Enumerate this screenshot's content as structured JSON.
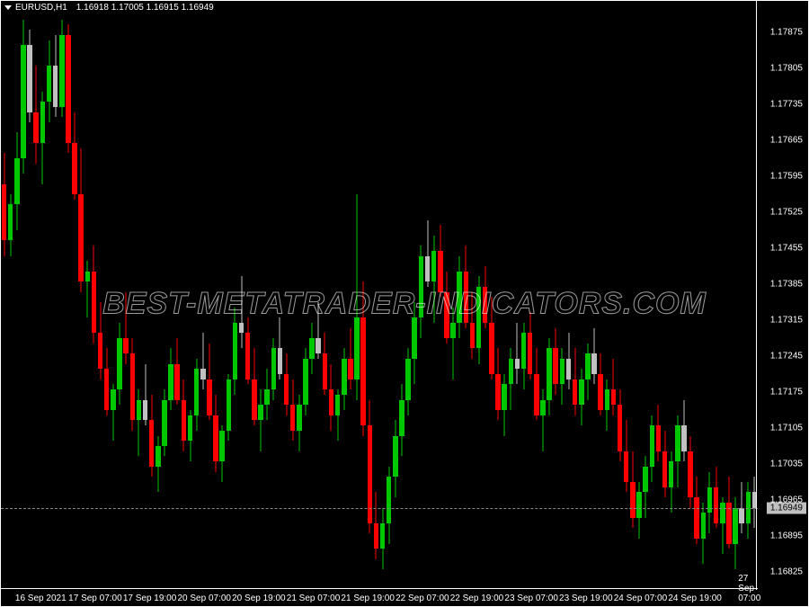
{
  "header": {
    "symbol": "EURUSD,H1",
    "ohlc": "1.16918 1.17005 1.16915 1.16949"
  },
  "chart": {
    "type": "candlestick",
    "background_color": "#000000",
    "border_color": "#ffffff",
    "text_color": "#ffffff",
    "up_color": "#00c800",
    "down_color": "#ff0000",
    "neutral_color": "#c0c0c0",
    "candle_width": 5.5,
    "ylim": [
      1.1679,
      1.1791
    ],
    "price_line_color": "#888888",
    "current_price": "1.16949",
    "y_ticks": [
      {
        "value": 1.17875,
        "label": "1.17875"
      },
      {
        "value": 1.17805,
        "label": "1.17805"
      },
      {
        "value": 1.17735,
        "label": "1.17735"
      },
      {
        "value": 1.17665,
        "label": "1.17665"
      },
      {
        "value": 1.17595,
        "label": "1.17595"
      },
      {
        "value": 1.17525,
        "label": "1.17525"
      },
      {
        "value": 1.17455,
        "label": "1.17455"
      },
      {
        "value": 1.17385,
        "label": "1.17385"
      },
      {
        "value": 1.17315,
        "label": "1.17315"
      },
      {
        "value": 1.17245,
        "label": "1.17245"
      },
      {
        "value": 1.17175,
        "label": "1.17175"
      },
      {
        "value": 1.17105,
        "label": "1.17105"
      },
      {
        "value": 1.17035,
        "label": "1.17035"
      },
      {
        "value": 1.16965,
        "label": "1.16965"
      },
      {
        "value": 1.16895,
        "label": "1.16895"
      },
      {
        "value": 1.16825,
        "label": "1.16825"
      }
    ],
    "x_ticks": [
      {
        "pos": 0.02,
        "label": "16 Sep 2021"
      },
      {
        "pos": 0.105,
        "label": "17 Sep 07:00"
      },
      {
        "pos": 0.19,
        "label": "17 Sep 19:00"
      },
      {
        "pos": 0.275,
        "label": "20 Sep 07:00"
      },
      {
        "pos": 0.36,
        "label": "20 Sep 19:00"
      },
      {
        "pos": 0.445,
        "label": "21 Sep 07:00"
      },
      {
        "pos": 0.53,
        "label": "21 Sep 19:00"
      },
      {
        "pos": 0.615,
        "label": "22 Sep 07:00"
      },
      {
        "pos": 0.7,
        "label": "22 Sep 19:00"
      },
      {
        "pos": 0.785,
        "label": "23 Sep 07:00"
      },
      {
        "pos": 0.87,
        "label": "23 Sep 19:00"
      },
      {
        "pos": 0.955,
        "label": "24 Sep 07:00"
      },
      {
        "pos": 1.04,
        "label": "24 Sep 19:00"
      },
      {
        "pos": 1.125,
        "label": "27 Sep 07:00"
      }
    ],
    "candles": [
      {
        "o": 1.1758,
        "h": 1.1764,
        "l": 1.1744,
        "c": 1.1747,
        "t": "down"
      },
      {
        "o": 1.1747,
        "h": 1.1756,
        "l": 1.1744,
        "c": 1.1754,
        "t": "up"
      },
      {
        "o": 1.1754,
        "h": 1.1768,
        "l": 1.1749,
        "c": 1.1763,
        "t": "up"
      },
      {
        "o": 1.1763,
        "h": 1.179,
        "l": 1.176,
        "c": 1.1785,
        "t": "up"
      },
      {
        "o": 1.1785,
        "h": 1.1788,
        "l": 1.177,
        "c": 1.1772,
        "t": "neutral"
      },
      {
        "o": 1.1772,
        "h": 1.1781,
        "l": 1.1762,
        "c": 1.1766,
        "t": "down"
      },
      {
        "o": 1.1766,
        "h": 1.1776,
        "l": 1.1758,
        "c": 1.1774,
        "t": "up"
      },
      {
        "o": 1.1774,
        "h": 1.1786,
        "l": 1.177,
        "c": 1.1781,
        "t": "up"
      },
      {
        "o": 1.1781,
        "h": 1.1787,
        "l": 1.1771,
        "c": 1.1773,
        "t": "neutral"
      },
      {
        "o": 1.1773,
        "h": 1.179,
        "l": 1.1771,
        "c": 1.1787,
        "t": "up"
      },
      {
        "o": 1.1787,
        "h": 1.1789,
        "l": 1.1764,
        "c": 1.1766,
        "t": "down"
      },
      {
        "o": 1.1766,
        "h": 1.1772,
        "l": 1.1755,
        "c": 1.1756,
        "t": "down"
      },
      {
        "o": 1.1756,
        "h": 1.1765,
        "l": 1.1737,
        "c": 1.1739,
        "t": "down"
      },
      {
        "o": 1.1739,
        "h": 1.1743,
        "l": 1.1732,
        "c": 1.1741,
        "t": "up"
      },
      {
        "o": 1.1741,
        "h": 1.1746,
        "l": 1.1727,
        "c": 1.1729,
        "t": "down"
      },
      {
        "o": 1.1729,
        "h": 1.1735,
        "l": 1.172,
        "c": 1.1722,
        "t": "down"
      },
      {
        "o": 1.1722,
        "h": 1.1726,
        "l": 1.1713,
        "c": 1.1714,
        "t": "down"
      },
      {
        "o": 1.1714,
        "h": 1.1719,
        "l": 1.1708,
        "c": 1.1718,
        "t": "up"
      },
      {
        "o": 1.1718,
        "h": 1.1731,
        "l": 1.1715,
        "c": 1.1728,
        "t": "up"
      },
      {
        "o": 1.1728,
        "h": 1.1737,
        "l": 1.1723,
        "c": 1.1725,
        "t": "down"
      },
      {
        "o": 1.1725,
        "h": 1.1728,
        "l": 1.171,
        "c": 1.1712,
        "t": "down"
      },
      {
        "o": 1.1712,
        "h": 1.1718,
        "l": 1.1705,
        "c": 1.1716,
        "t": "up"
      },
      {
        "o": 1.1716,
        "h": 1.1723,
        "l": 1.1711,
        "c": 1.1712,
        "t": "neutral"
      },
      {
        "o": 1.1712,
        "h": 1.1717,
        "l": 1.1701,
        "c": 1.1703,
        "t": "down"
      },
      {
        "o": 1.1703,
        "h": 1.1709,
        "l": 1.1698,
        "c": 1.1707,
        "t": "up"
      },
      {
        "o": 1.1707,
        "h": 1.1718,
        "l": 1.1705,
        "c": 1.1716,
        "t": "up"
      },
      {
        "o": 1.1716,
        "h": 1.1726,
        "l": 1.1714,
        "c": 1.1723,
        "t": "up"
      },
      {
        "o": 1.1723,
        "h": 1.1728,
        "l": 1.1715,
        "c": 1.1716,
        "t": "down"
      },
      {
        "o": 1.1716,
        "h": 1.172,
        "l": 1.1706,
        "c": 1.1708,
        "t": "down"
      },
      {
        "o": 1.1708,
        "h": 1.1714,
        "l": 1.1704,
        "c": 1.1713,
        "t": "up"
      },
      {
        "o": 1.1713,
        "h": 1.1724,
        "l": 1.171,
        "c": 1.1722,
        "t": "up"
      },
      {
        "o": 1.1722,
        "h": 1.1729,
        "l": 1.1718,
        "c": 1.172,
        "t": "neutral"
      },
      {
        "o": 1.172,
        "h": 1.1727,
        "l": 1.1712,
        "c": 1.1713,
        "t": "down"
      },
      {
        "o": 1.1713,
        "h": 1.1717,
        "l": 1.1702,
        "c": 1.1704,
        "t": "down"
      },
      {
        "o": 1.1704,
        "h": 1.1711,
        "l": 1.17,
        "c": 1.171,
        "t": "up"
      },
      {
        "o": 1.171,
        "h": 1.1721,
        "l": 1.1708,
        "c": 1.172,
        "t": "up"
      },
      {
        "o": 1.172,
        "h": 1.1734,
        "l": 1.1717,
        "c": 1.1731,
        "t": "up"
      },
      {
        "o": 1.1731,
        "h": 1.174,
        "l": 1.1726,
        "c": 1.1729,
        "t": "neutral"
      },
      {
        "o": 1.1729,
        "h": 1.1732,
        "l": 1.1719,
        "c": 1.172,
        "t": "down"
      },
      {
        "o": 1.172,
        "h": 1.1726,
        "l": 1.1711,
        "c": 1.1712,
        "t": "down"
      },
      {
        "o": 1.1712,
        "h": 1.1718,
        "l": 1.1706,
        "c": 1.1715,
        "t": "up"
      },
      {
        "o": 1.1715,
        "h": 1.1722,
        "l": 1.1712,
        "c": 1.1718,
        "t": "up"
      },
      {
        "o": 1.1718,
        "h": 1.1728,
        "l": 1.1716,
        "c": 1.1726,
        "t": "up"
      },
      {
        "o": 1.1726,
        "h": 1.1732,
        "l": 1.172,
        "c": 1.1721,
        "t": "neutral"
      },
      {
        "o": 1.1721,
        "h": 1.1725,
        "l": 1.1713,
        "c": 1.1715,
        "t": "down"
      },
      {
        "o": 1.1715,
        "h": 1.172,
        "l": 1.1708,
        "c": 1.171,
        "t": "down"
      },
      {
        "o": 1.171,
        "h": 1.1717,
        "l": 1.1706,
        "c": 1.1715,
        "t": "up"
      },
      {
        "o": 1.1715,
        "h": 1.1726,
        "l": 1.1713,
        "c": 1.1724,
        "t": "up"
      },
      {
        "o": 1.1724,
        "h": 1.1731,
        "l": 1.1721,
        "c": 1.1728,
        "t": "up"
      },
      {
        "o": 1.1728,
        "h": 1.1735,
        "l": 1.1724,
        "c": 1.1725,
        "t": "neutral"
      },
      {
        "o": 1.1725,
        "h": 1.1729,
        "l": 1.1717,
        "c": 1.1718,
        "t": "down"
      },
      {
        "o": 1.1718,
        "h": 1.1723,
        "l": 1.171,
        "c": 1.1713,
        "t": "down"
      },
      {
        "o": 1.1713,
        "h": 1.1718,
        "l": 1.1708,
        "c": 1.1717,
        "t": "up"
      },
      {
        "o": 1.1717,
        "h": 1.1726,
        "l": 1.1714,
        "c": 1.1724,
        "t": "up"
      },
      {
        "o": 1.1724,
        "h": 1.173,
        "l": 1.1718,
        "c": 1.172,
        "t": "down"
      },
      {
        "o": 1.172,
        "h": 1.1756,
        "l": 1.1716,
        "c": 1.1732,
        "t": "up"
      },
      {
        "o": 1.1732,
        "h": 1.1739,
        "l": 1.1709,
        "c": 1.1711,
        "t": "down"
      },
      {
        "o": 1.1711,
        "h": 1.1716,
        "l": 1.169,
        "c": 1.1692,
        "t": "down"
      },
      {
        "o": 1.1692,
        "h": 1.1698,
        "l": 1.1685,
        "c": 1.1687,
        "t": "down"
      },
      {
        "o": 1.1687,
        "h": 1.1695,
        "l": 1.1683,
        "c": 1.1692,
        "t": "up"
      },
      {
        "o": 1.1692,
        "h": 1.1703,
        "l": 1.1688,
        "c": 1.1701,
        "t": "up"
      },
      {
        "o": 1.1701,
        "h": 1.1712,
        "l": 1.1697,
        "c": 1.1709,
        "t": "up"
      },
      {
        "o": 1.1709,
        "h": 1.1719,
        "l": 1.1705,
        "c": 1.1716,
        "t": "up"
      },
      {
        "o": 1.1716,
        "h": 1.1726,
        "l": 1.1713,
        "c": 1.1724,
        "t": "up"
      },
      {
        "o": 1.1724,
        "h": 1.1735,
        "l": 1.1719,
        "c": 1.1732,
        "t": "up"
      },
      {
        "o": 1.1732,
        "h": 1.1746,
        "l": 1.1728,
        "c": 1.1744,
        "t": "up"
      },
      {
        "o": 1.1744,
        "h": 1.1751,
        "l": 1.1738,
        "c": 1.1739,
        "t": "neutral"
      },
      {
        "o": 1.1739,
        "h": 1.1748,
        "l": 1.1731,
        "c": 1.1745,
        "t": "up"
      },
      {
        "o": 1.1745,
        "h": 1.175,
        "l": 1.1736,
        "c": 1.1737,
        "t": "down"
      },
      {
        "o": 1.1737,
        "h": 1.1741,
        "l": 1.1727,
        "c": 1.1728,
        "t": "down"
      },
      {
        "o": 1.1728,
        "h": 1.1734,
        "l": 1.172,
        "c": 1.1731,
        "t": "up"
      },
      {
        "o": 1.1731,
        "h": 1.1744,
        "l": 1.1728,
        "c": 1.1741,
        "t": "up"
      },
      {
        "o": 1.1741,
        "h": 1.1746,
        "l": 1.173,
        "c": 1.1731,
        "t": "down"
      },
      {
        "o": 1.1731,
        "h": 1.1737,
        "l": 1.1724,
        "c": 1.1726,
        "t": "down"
      },
      {
        "o": 1.1726,
        "h": 1.174,
        "l": 1.1723,
        "c": 1.1738,
        "t": "up"
      },
      {
        "o": 1.1738,
        "h": 1.1742,
        "l": 1.173,
        "c": 1.1731,
        "t": "down"
      },
      {
        "o": 1.1731,
        "h": 1.1736,
        "l": 1.172,
        "c": 1.1721,
        "t": "down"
      },
      {
        "o": 1.1721,
        "h": 1.1726,
        "l": 1.1712,
        "c": 1.1714,
        "t": "down"
      },
      {
        "o": 1.1714,
        "h": 1.1721,
        "l": 1.1709,
        "c": 1.1719,
        "t": "up"
      },
      {
        "o": 1.1719,
        "h": 1.1726,
        "l": 1.1714,
        "c": 1.1724,
        "t": "up"
      },
      {
        "o": 1.1724,
        "h": 1.1731,
        "l": 1.1719,
        "c": 1.1722,
        "t": "neutral"
      },
      {
        "o": 1.1722,
        "h": 1.1731,
        "l": 1.1718,
        "c": 1.1729,
        "t": "up"
      },
      {
        "o": 1.1729,
        "h": 1.1733,
        "l": 1.172,
        "c": 1.1721,
        "t": "down"
      },
      {
        "o": 1.1721,
        "h": 1.1726,
        "l": 1.1712,
        "c": 1.1713,
        "t": "down"
      },
      {
        "o": 1.1713,
        "h": 1.1718,
        "l": 1.1706,
        "c": 1.1716,
        "t": "up"
      },
      {
        "o": 1.1716,
        "h": 1.1728,
        "l": 1.1713,
        "c": 1.1726,
        "t": "up"
      },
      {
        "o": 1.1726,
        "h": 1.173,
        "l": 1.1717,
        "c": 1.1719,
        "t": "down"
      },
      {
        "o": 1.1719,
        "h": 1.1726,
        "l": 1.1715,
        "c": 1.1724,
        "t": "up"
      },
      {
        "o": 1.1724,
        "h": 1.1729,
        "l": 1.1718,
        "c": 1.172,
        "t": "neutral"
      },
      {
        "o": 1.172,
        "h": 1.1726,
        "l": 1.1713,
        "c": 1.1715,
        "t": "down"
      },
      {
        "o": 1.1715,
        "h": 1.1722,
        "l": 1.1711,
        "c": 1.172,
        "t": "up"
      },
      {
        "o": 1.172,
        "h": 1.1727,
        "l": 1.1716,
        "c": 1.1725,
        "t": "up"
      },
      {
        "o": 1.1725,
        "h": 1.173,
        "l": 1.1719,
        "c": 1.1721,
        "t": "neutral"
      },
      {
        "o": 1.1721,
        "h": 1.1725,
        "l": 1.1713,
        "c": 1.1714,
        "t": "down"
      },
      {
        "o": 1.1714,
        "h": 1.172,
        "l": 1.171,
        "c": 1.1718,
        "t": "up"
      },
      {
        "o": 1.1718,
        "h": 1.1724,
        "l": 1.1713,
        "c": 1.1715,
        "t": "down"
      },
      {
        "o": 1.1715,
        "h": 1.1718,
        "l": 1.1704,
        "c": 1.1706,
        "t": "down"
      },
      {
        "o": 1.1706,
        "h": 1.1712,
        "l": 1.1698,
        "c": 1.17,
        "t": "down"
      },
      {
        "o": 1.17,
        "h": 1.1706,
        "l": 1.1691,
        "c": 1.1693,
        "t": "down"
      },
      {
        "o": 1.1693,
        "h": 1.17,
        "l": 1.1689,
        "c": 1.1698,
        "t": "up"
      },
      {
        "o": 1.1698,
        "h": 1.1705,
        "l": 1.1693,
        "c": 1.1703,
        "t": "up"
      },
      {
        "o": 1.1703,
        "h": 1.1713,
        "l": 1.17,
        "c": 1.1711,
        "t": "up"
      },
      {
        "o": 1.1711,
        "h": 1.1715,
        "l": 1.1704,
        "c": 1.1706,
        "t": "down"
      },
      {
        "o": 1.1706,
        "h": 1.171,
        "l": 1.1697,
        "c": 1.1699,
        "t": "down"
      },
      {
        "o": 1.1699,
        "h": 1.1706,
        "l": 1.1694,
        "c": 1.1704,
        "t": "up"
      },
      {
        "o": 1.1704,
        "h": 1.1713,
        "l": 1.1699,
        "c": 1.1711,
        "t": "up"
      },
      {
        "o": 1.1711,
        "h": 1.1716,
        "l": 1.1704,
        "c": 1.1706,
        "t": "neutral"
      },
      {
        "o": 1.1706,
        "h": 1.1709,
        "l": 1.1695,
        "c": 1.1697,
        "t": "down"
      },
      {
        "o": 1.1697,
        "h": 1.1701,
        "l": 1.1688,
        "c": 1.1689,
        "t": "down"
      },
      {
        "o": 1.1689,
        "h": 1.1696,
        "l": 1.1684,
        "c": 1.1694,
        "t": "up"
      },
      {
        "o": 1.1694,
        "h": 1.1702,
        "l": 1.169,
        "c": 1.1699,
        "t": "up"
      },
      {
        "o": 1.1699,
        "h": 1.1703,
        "l": 1.1691,
        "c": 1.1692,
        "t": "down"
      },
      {
        "o": 1.1692,
        "h": 1.1697,
        "l": 1.1686,
        "c": 1.1696,
        "t": "up"
      },
      {
        "o": 1.1696,
        "h": 1.1701,
        "l": 1.1687,
        "c": 1.1688,
        "t": "down"
      },
      {
        "o": 1.1688,
        "h": 1.1697,
        "l": 1.1683,
        "c": 1.1695,
        "t": "up"
      },
      {
        "o": 1.1695,
        "h": 1.17,
        "l": 1.169,
        "c": 1.1692,
        "t": "neutral"
      },
      {
        "o": 1.1692,
        "h": 1.17,
        "l": 1.1689,
        "c": 1.1698,
        "t": "up"
      },
      {
        "o": 1.1698,
        "h": 1.1701,
        "l": 1.1691,
        "c": 1.16949,
        "t": "neutral"
      }
    ]
  },
  "watermark": {
    "text": "BEST-METATRADER-INDICATORS.COM"
  }
}
